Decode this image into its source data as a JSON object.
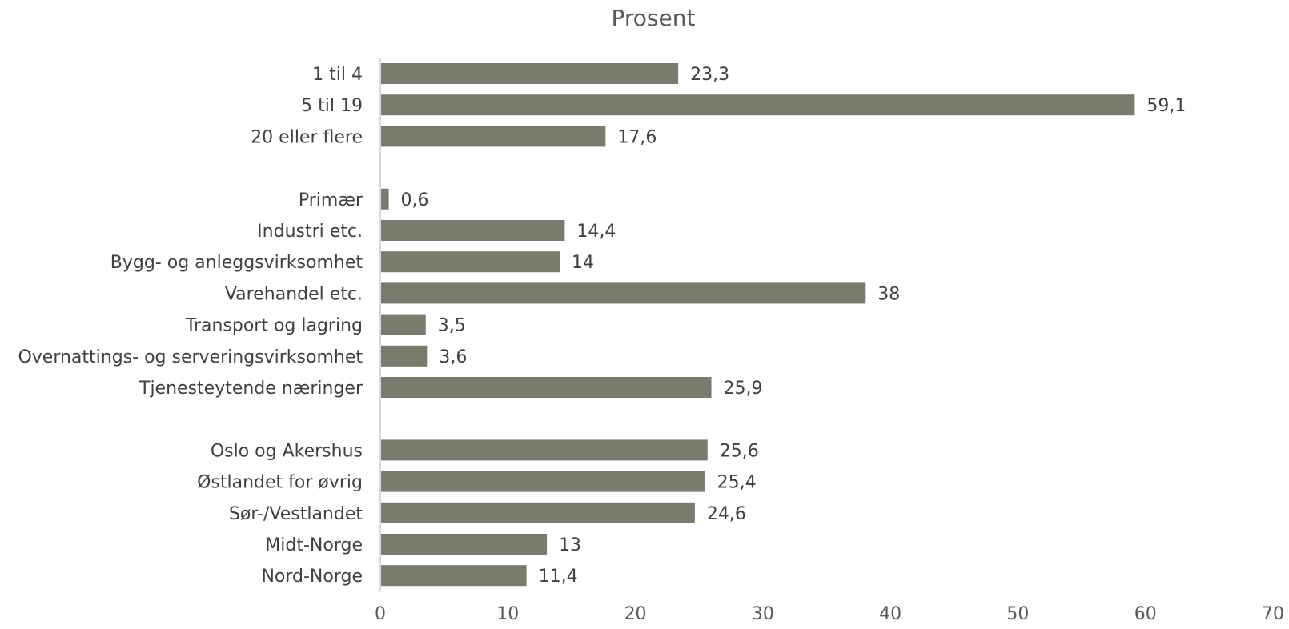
{
  "chart_data": {
    "type": "bar",
    "orientation": "horizontal",
    "title": "Prosent",
    "xlabel": "",
    "ylabel": "",
    "xlim": [
      0,
      70
    ],
    "x_ticks": [
      0,
      10,
      20,
      30,
      40,
      50,
      60,
      70
    ],
    "grid": false,
    "legend": "none",
    "bar_color": "#797B6C",
    "groups": [
      {
        "categories": [
          "1 til 4",
          "5 til 19",
          "20 eller flere"
        ],
        "values": [
          23.3,
          59.1,
          17.6
        ],
        "value_labels": [
          "23,3",
          "59,1",
          "17,6"
        ]
      },
      {
        "categories": [
          "Primær",
          "Industri etc.",
          "Bygg- og anleggsvirksomhet",
          "Varehandel etc.",
          "Transport og lagring",
          "Overnattings- og serveringsvirksomhet",
          "Tjenesteytende næringer"
        ],
        "values": [
          0.6,
          14.4,
          14,
          38,
          3.5,
          3.6,
          25.9
        ],
        "value_labels": [
          "0,6",
          "14,4",
          "14",
          "38",
          "3,5",
          "3,6",
          "25,9"
        ]
      },
      {
        "categories": [
          "Oslo og Akershus",
          "Østlandet for øvrig",
          "Sør-/Vestlandet",
          "Midt-Norge",
          "Nord-Norge"
        ],
        "values": [
          25.6,
          25.4,
          24.6,
          13,
          11.4
        ],
        "value_labels": [
          "25,6",
          "25,4",
          "24,6",
          "13",
          "11,4"
        ]
      }
    ]
  }
}
